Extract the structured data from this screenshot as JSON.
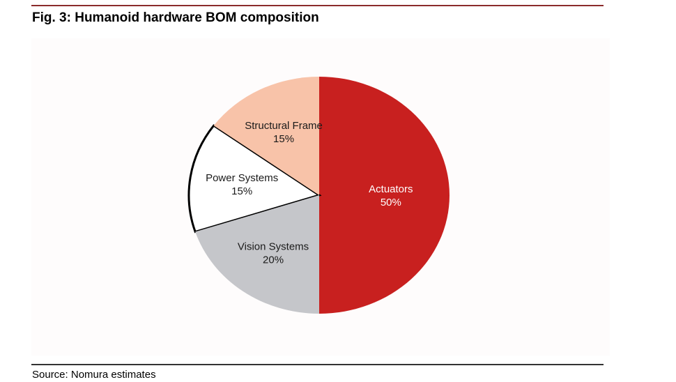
{
  "title": "Fig. 3: Humanoid hardware BOM composition",
  "source": "Source: Nomura estimates",
  "chart_data": {
    "type": "pie",
    "title": "Fig. 3: Humanoid hardware BOM composition",
    "start": "top",
    "direction": "clockwise",
    "slices": [
      {
        "label": "Actuators",
        "value": 50,
        "value_label": "50%",
        "color": "#c8201f",
        "text_color": "#ffffff",
        "outlined": false
      },
      {
        "label": "Vision Systems",
        "value": 20,
        "value_label": "20%",
        "color": "#c5c6ca",
        "text_color": "#1a1a1a",
        "outlined": false
      },
      {
        "label": "Power Systems",
        "value": 15,
        "value_label": "15%",
        "color": "#ffffff",
        "text_color": "#1a1a1a",
        "outlined": true
      },
      {
        "label": "Structural Frame",
        "value": 15,
        "value_label": "15%",
        "color": "#f8c3a9",
        "text_color": "#1a1a1a",
        "outlined": false
      }
    ]
  }
}
